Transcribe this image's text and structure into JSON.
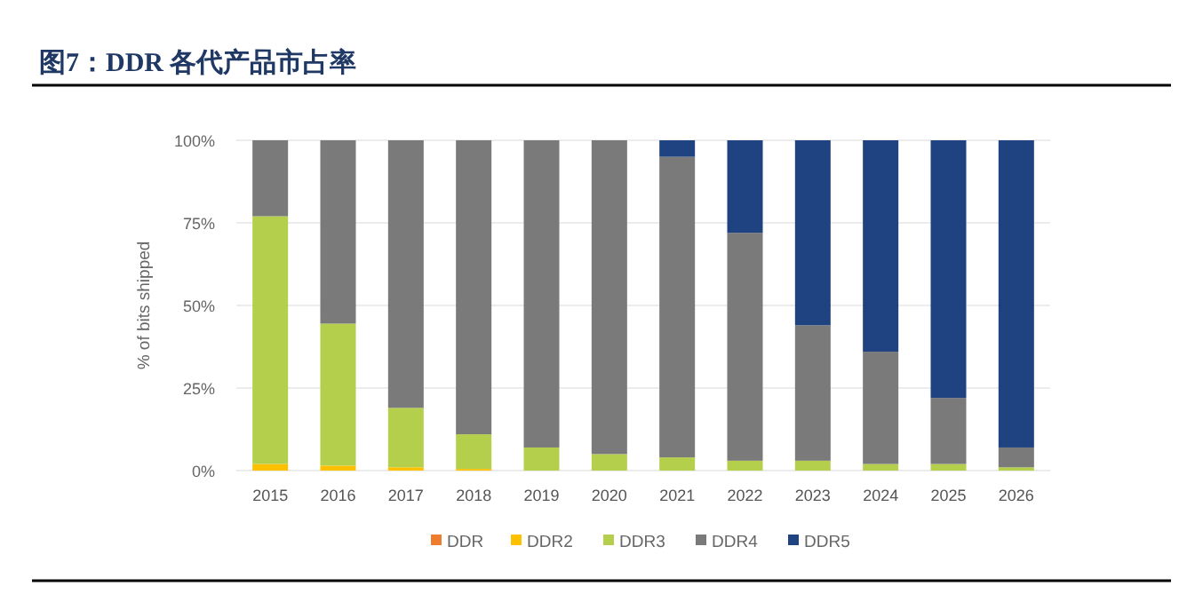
{
  "chart_data": {
    "type": "bar",
    "title": "图7：DDR 各代产品市占率",
    "ylabel": "% of bits shipped",
    "stacked": true,
    "grid": "y",
    "legend": "bottom",
    "categories": [
      "2015",
      "2016",
      "2017",
      "2018",
      "2019",
      "2020",
      "2021",
      "2022",
      "2023",
      "2024",
      "2025",
      "2026"
    ],
    "ylim": [
      0,
      100
    ],
    "yticks": [
      {
        "value": 0,
        "label": "0%"
      },
      {
        "value": 25,
        "label": "25%"
      },
      {
        "value": 50,
        "label": "50%"
      },
      {
        "value": 75,
        "label": "75%"
      },
      {
        "value": 100,
        "label": "100%"
      }
    ],
    "series": [
      {
        "name": "DDR",
        "color": "#ed7d31",
        "values": [
          0,
          0,
          0,
          0,
          0,
          0,
          0,
          0,
          0,
          0,
          0,
          0
        ]
      },
      {
        "name": "DDR2",
        "color": "#ffc000",
        "values": [
          2,
          1.5,
          1,
          0.5,
          0,
          0,
          0,
          0,
          0,
          0,
          0,
          0
        ]
      },
      {
        "name": "DDR3",
        "color": "#b4cf4c",
        "values": [
          75,
          43,
          18,
          10.5,
          7,
          5,
          4,
          3,
          3,
          2,
          2,
          1
        ]
      },
      {
        "name": "DDR4",
        "color": "#7a7a7a",
        "values": [
          23,
          55.5,
          81,
          89,
          93,
          95,
          91,
          69,
          41,
          34,
          20,
          6
        ]
      },
      {
        "name": "DDR5",
        "color": "#1f4280",
        "values": [
          0,
          0,
          0,
          0,
          0,
          0,
          5,
          28,
          56,
          64,
          78,
          93
        ]
      }
    ]
  }
}
